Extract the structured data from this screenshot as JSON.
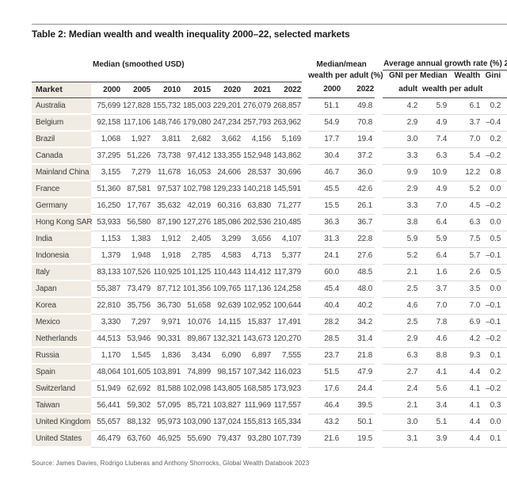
{
  "page": {
    "title": "Table 2: Median wealth and wealth inequality 2000–22, selected markets",
    "source": "Source: James Davies, Rodrigo Lluberas and Anthony Shorrocks, Global Wealth Databook 2023"
  },
  "table": {
    "market_header": "Market",
    "groups": {
      "median_smoothed": "Median (smoothed USD)",
      "median_mean_line1": "Median/mean",
      "median_mean_line2": "wealth per adult (%)",
      "growth": "Average annual growth rate (%) 2000–22"
    },
    "year_columns": [
      "2000",
      "2005",
      "2010",
      "2015",
      "2020",
      "2021",
      "2022"
    ],
    "median_mean_years": [
      "2000",
      "2022"
    ],
    "growth_subheaders_line1": [
      "GNI per",
      "Median",
      "Wealth",
      "Gini"
    ],
    "growth_subheaders_line2": [
      "adult",
      "wealth",
      "per adult",
      ""
    ],
    "rows": [
      {
        "market": "Australia",
        "median": [
          "75,699",
          "127,828",
          "155,732",
          "185,003",
          "229,201",
          "276,079",
          "268,857"
        ],
        "median_mean": [
          "51.1",
          "49.8"
        ],
        "growth": [
          "4.2",
          "5.9",
          "6.1",
          "0.2"
        ]
      },
      {
        "market": "Belgium",
        "median": [
          "92,158",
          "117,106",
          "148,746",
          "179,080",
          "247,234",
          "257,793",
          "263,962"
        ],
        "median_mean": [
          "54.9",
          "70.8"
        ],
        "growth": [
          "2.9",
          "4.9",
          "3.7",
          "–0.4"
        ]
      },
      {
        "market": "Brazil",
        "median": [
          "1,068",
          "1,927",
          "3,811",
          "2,682",
          "3,662",
          "4,156",
          "5,169"
        ],
        "median_mean": [
          "17.7",
          "19.4"
        ],
        "growth": [
          "3.0",
          "7.4",
          "7.0",
          "0.2"
        ]
      },
      {
        "market": "Canada",
        "median": [
          "37,295",
          "51,226",
          "73,738",
          "97,412",
          "133,355",
          "152,948",
          "143,862"
        ],
        "median_mean": [
          "30.4",
          "37.2"
        ],
        "growth": [
          "3.3",
          "6.3",
          "5.4",
          "–0.2"
        ]
      },
      {
        "market": "Mainland China",
        "median": [
          "3,155",
          "7,279",
          "11,678",
          "16,053",
          "24,606",
          "28,537",
          "30,696"
        ],
        "median_mean": [
          "46.7",
          "36.0"
        ],
        "growth": [
          "9.9",
          "10.9",
          "12.2",
          "0.8"
        ]
      },
      {
        "market": "France",
        "median": [
          "51,360",
          "87,581",
          "97,537",
          "102,798",
          "129,233",
          "140,218",
          "145,591"
        ],
        "median_mean": [
          "45.5",
          "42.6"
        ],
        "growth": [
          "2.9",
          "4.9",
          "5.2",
          "0.0"
        ]
      },
      {
        "market": "Germany",
        "median": [
          "16,250",
          "17,767",
          "35,632",
          "42,019",
          "60,316",
          "63,830",
          "71,277"
        ],
        "median_mean": [
          "15.5",
          "26.1"
        ],
        "growth": [
          "3.3",
          "7.0",
          "4.5",
          "–0.2"
        ]
      },
      {
        "market": "Hong Kong SAR",
        "median": [
          "53,933",
          "56,580",
          "87,190",
          "127,276",
          "185,086",
          "202,536",
          "210,485"
        ],
        "median_mean": [
          "36.3",
          "36.7"
        ],
        "growth": [
          "3.8",
          "6.4",
          "6.3",
          "0.0"
        ]
      },
      {
        "market": "India",
        "median": [
          "1,153",
          "1,383",
          "1,912",
          "2,405",
          "3,299",
          "3,656",
          "4,107"
        ],
        "median_mean": [
          "31.3",
          "22.8"
        ],
        "growth": [
          "5.9",
          "5.9",
          "7.5",
          "0.5"
        ]
      },
      {
        "market": "Indonesia",
        "median": [
          "1,379",
          "1,948",
          "1,918",
          "2,785",
          "4,583",
          "4,713",
          "5,377"
        ],
        "median_mean": [
          "24.1",
          "27.6"
        ],
        "growth": [
          "5.2",
          "6.4",
          "5.7",
          "–0.1"
        ]
      },
      {
        "market": "Italy",
        "median": [
          "83,133",
          "107,526",
          "110,925",
          "101,125",
          "110,443",
          "114,412",
          "117,379"
        ],
        "median_mean": [
          "60.0",
          "48.5"
        ],
        "growth": [
          "2.1",
          "1.6",
          "2.6",
          "0.5"
        ]
      },
      {
        "market": "Japan",
        "median": [
          "55,387",
          "73,479",
          "87,712",
          "101,356",
          "109,765",
          "117,136",
          "124,258"
        ],
        "median_mean": [
          "45.4",
          "48.0"
        ],
        "growth": [
          "2.5",
          "3.7",
          "3.5",
          "0.0"
        ]
      },
      {
        "market": "Korea",
        "median": [
          "22,810",
          "35,756",
          "36,730",
          "51,658",
          "92,639",
          "102,952",
          "100,644"
        ],
        "median_mean": [
          "40.4",
          "40.2"
        ],
        "growth": [
          "4.6",
          "7.0",
          "7.0",
          "–0.1"
        ]
      },
      {
        "market": "Mexico",
        "median": [
          "3,330",
          "7,297",
          "9,971",
          "10,076",
          "14,115",
          "15,837",
          "17,491"
        ],
        "median_mean": [
          "28.2",
          "34.2"
        ],
        "growth": [
          "2.5",
          "7.8",
          "6.9",
          "–0.1"
        ]
      },
      {
        "market": "Netherlands",
        "median": [
          "44,513",
          "53,946",
          "90,331",
          "89,867",
          "132,321",
          "143,673",
          "120,270"
        ],
        "median_mean": [
          "28.5",
          "31.4"
        ],
        "growth": [
          "2.9",
          "4.6",
          "4.2",
          "–0.2"
        ]
      },
      {
        "market": "Russia",
        "median": [
          "1,170",
          "1,545",
          "1,836",
          "3,434",
          "6,090",
          "6,897",
          "7,555"
        ],
        "median_mean": [
          "23.7",
          "21.8"
        ],
        "growth": [
          "6.3",
          "8.8",
          "9.3",
          "0.1"
        ]
      },
      {
        "market": "Spain",
        "median": [
          "48,064",
          "101,605",
          "103,891",
          "74,899",
          "98,157",
          "107,342",
          "116,023"
        ],
        "median_mean": [
          "51.5",
          "47.9"
        ],
        "growth": [
          "2.7",
          "4.1",
          "4.4",
          "0.2"
        ]
      },
      {
        "market": "Switzerland",
        "median": [
          "51,949",
          "62,692",
          "81,588",
          "102,098",
          "143,805",
          "168,585",
          "173,923"
        ],
        "median_mean": [
          "17.6",
          "24.4"
        ],
        "growth": [
          "2.4",
          "5.6",
          "4.1",
          "–0.2"
        ]
      },
      {
        "market": "Taiwan",
        "median": [
          "56,441",
          "59,302",
          "57,095",
          "85,721",
          "103,827",
          "111,969",
          "117,557"
        ],
        "median_mean": [
          "46.4",
          "39.5"
        ],
        "growth": [
          "2.1",
          "3.4",
          "4.1",
          "0.3"
        ]
      },
      {
        "market": "United Kingdom",
        "median": [
          "55,657",
          "88,132",
          "95,973",
          "103,090",
          "137,024",
          "155,813",
          "165,334"
        ],
        "median_mean": [
          "43.2",
          "50.1"
        ],
        "growth": [
          "3.0",
          "5.1",
          "4.4",
          "0.0"
        ]
      },
      {
        "market": "United States",
        "median": [
          "46,479",
          "63,760",
          "46,925",
          "55,690",
          "79,437",
          "93,280",
          "107,739"
        ],
        "median_mean": [
          "21.6",
          "19.5"
        ],
        "growth": [
          "3.1",
          "3.9",
          "4.4",
          "0.1"
        ]
      }
    ]
  },
  "colors": {
    "market_column_bg": "#f0ece3",
    "dark_rule": "#4a4a4a",
    "light_rule": "#d9d8d5",
    "page_rule": "#8f8f8f"
  }
}
